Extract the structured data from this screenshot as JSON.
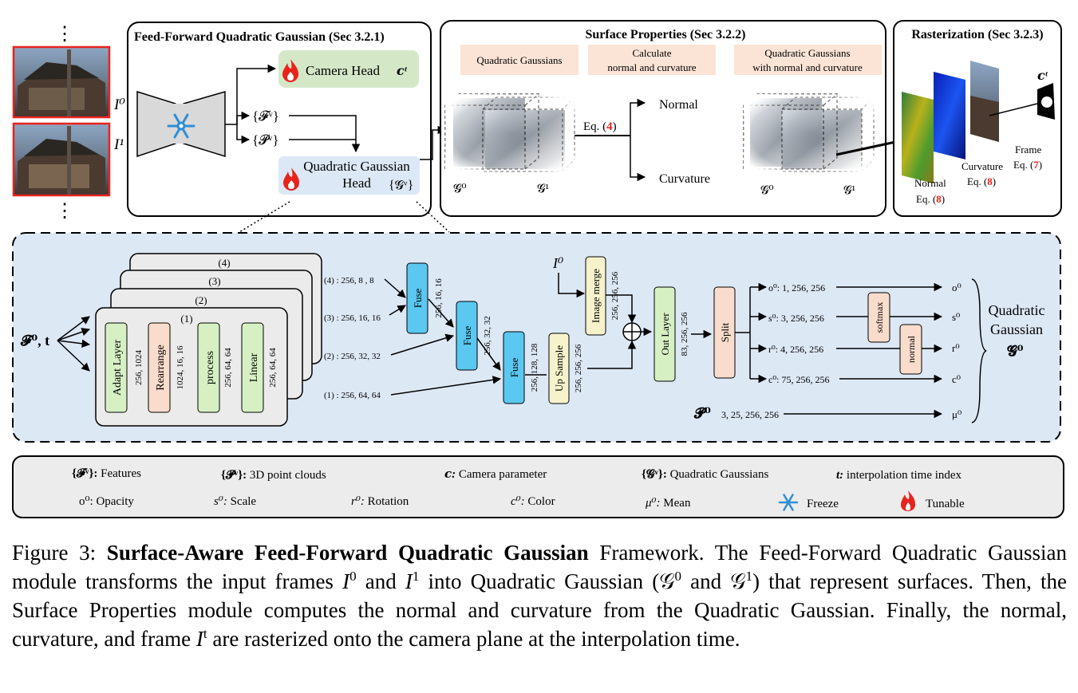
{
  "ff_module": {
    "title": "Feed-Forward Quadratic Gaussian (Sec 3.2.1)",
    "camera_head": "Camera Head",
    "camera_sym": "𝒄ᵗ",
    "feat_sym": "{𝓕ᵛ}",
    "pts_sym": "{𝓟ᵛ}",
    "qg_head_line1": "Quadratic Gaussian",
    "qg_head_line2": "Head",
    "qg_head_sym": "{𝓖ᵛ}",
    "input0": "I⁰",
    "input1": "I¹",
    "dots": "⋮"
  },
  "surface_module": {
    "title": "Surface Properties (Sec 3.2.2)",
    "box1": "Quadratic Gaussians",
    "box2_line1": "Calculate",
    "box2_line2": "normal and curvature",
    "box3_line1": "Quadratic Gaussians",
    "box3_line2": "with normal and curvature",
    "eq_label": "Eq. (",
    "eq_num": "4",
    "eq_close": ")",
    "normal": "Normal",
    "curvature": "Curvature",
    "g0": "𝓖⁰",
    "g1": "𝓖¹"
  },
  "raster_module": {
    "title": "Rasterization (Sec 3.2.3)",
    "cam_sym": "𝒄ᵗ",
    "frame": "Frame",
    "frame_eq": "Eq. (",
    "frame_num": "7",
    "curvature": "Curvature",
    "curv_eq": "Eq. (",
    "curv_num": "8",
    "normal": "Normal",
    "normal_eq": "Eq. (",
    "normal_num": "8",
    "close": ")"
  },
  "detail": {
    "input_sym": "𝓕⁰, t",
    "layer_nums": [
      "(4)",
      "(3)",
      "(2)",
      "(1)"
    ],
    "blocks": [
      {
        "label": "Adapt Layer",
        "dims": "256, 1024"
      },
      {
        "label": "Rearrange",
        "dims": "1024, 16, 16"
      },
      {
        "label": "process",
        "dims": "256, 64, 64"
      },
      {
        "label": "Linear",
        "dims": "256, 64, 64"
      }
    ],
    "outputs": [
      "(4) : 256, 8 ,  8",
      "(3) : 256, 16, 16",
      "(2) : 256, 32, 32",
      "(1) : 256, 64, 64"
    ],
    "fuse": [
      {
        "label": "Fuse",
        "dims": "256, 16, 16"
      },
      {
        "label": "Fuse",
        "dims": "256, 32, 32"
      },
      {
        "label": "Fuse",
        "dims": "256, 128, 128"
      }
    ],
    "upsample": {
      "label": "Up Sample",
      "dims": "256, 256, 256"
    },
    "image_merge": {
      "label": "Image merge",
      "dims": "256, 256, 256"
    },
    "i0": "I⁰",
    "out_layer": {
      "label": "Out Layer",
      "dims": "83, 256, 256"
    },
    "split": "Split",
    "params": [
      {
        "in": "o⁰: 1, 256, 256",
        "out": "o⁰"
      },
      {
        "in": "s⁰: 3, 256, 256",
        "out": "s⁰"
      },
      {
        "in": "r⁰: 4, 256, 256",
        "out": "r⁰"
      },
      {
        "in": "c⁰: 75, 256, 256",
        "out": "c⁰"
      }
    ],
    "softmax": "softmax",
    "normal": "normal",
    "p0_sym": "𝓟⁰",
    "p0_dims": "3, 25, 256, 256",
    "mu_out": "μ⁰",
    "result_line1": "Quadratic",
    "result_line2": "Gaussian",
    "result_sym": "𝓖⁰"
  },
  "legend": [
    {
      "sym": "{𝓕ᵛ}:",
      "text": " Features"
    },
    {
      "sym": "{𝓟ᵛ}:",
      "text": " 3D point clouds"
    },
    {
      "sym": "𝒄:",
      "text": " Camera parameter"
    },
    {
      "sym": "{𝓖ᵛ}:",
      "text": " Quadratic Gaussians"
    },
    {
      "sym": "t:",
      "text": " interpolation time index"
    },
    {
      "sym": "o⁰:",
      "text": " Opacity"
    },
    {
      "sym": "s⁰:",
      "text": " Scale"
    },
    {
      "sym": "r⁰:",
      "text": " Rotation"
    },
    {
      "sym": "c⁰:",
      "text": " Color"
    },
    {
      "sym": "μ⁰:",
      "text": " Mean"
    },
    {
      "sym": "",
      "text": "Freeze"
    },
    {
      "sym": "",
      "text": "Tunable"
    }
  ],
  "caption": {
    "prefix": "Figure 3: ",
    "bold": "Surface-Aware Feed-Forward Quadratic Gaussian",
    "t1": " Framework. The Feed-Forward Quadratic Gaussian module transforms the input frames ",
    "t2": " and ",
    "t3": " into Quadratic Gaussian (",
    "t4": " and ",
    "t5": ") that represent surfaces. Then, the Surface Properties module computes the normal and curvature from the Quadratic Gaussian. Finally, the normal, curvature, and frame ",
    "t6": " are rasterized onto the camera plane at the interpolation time.",
    "I": "I",
    "G": "𝒢",
    "s0": "0",
    "s1": "1",
    "st": "t"
  },
  "colors": {
    "camera_head": "#d4e8c8",
    "qg_head": "#dce8f6",
    "surface_box": "#fbe4d6",
    "detail_bg": "#dde8f5",
    "green": "#d6f0c4",
    "peach": "#f9dccb",
    "blue": "#5ac8f0",
    "yellow": "#f6f3cc",
    "legend_bg": "#ececec",
    "red": "#e8231c"
  }
}
